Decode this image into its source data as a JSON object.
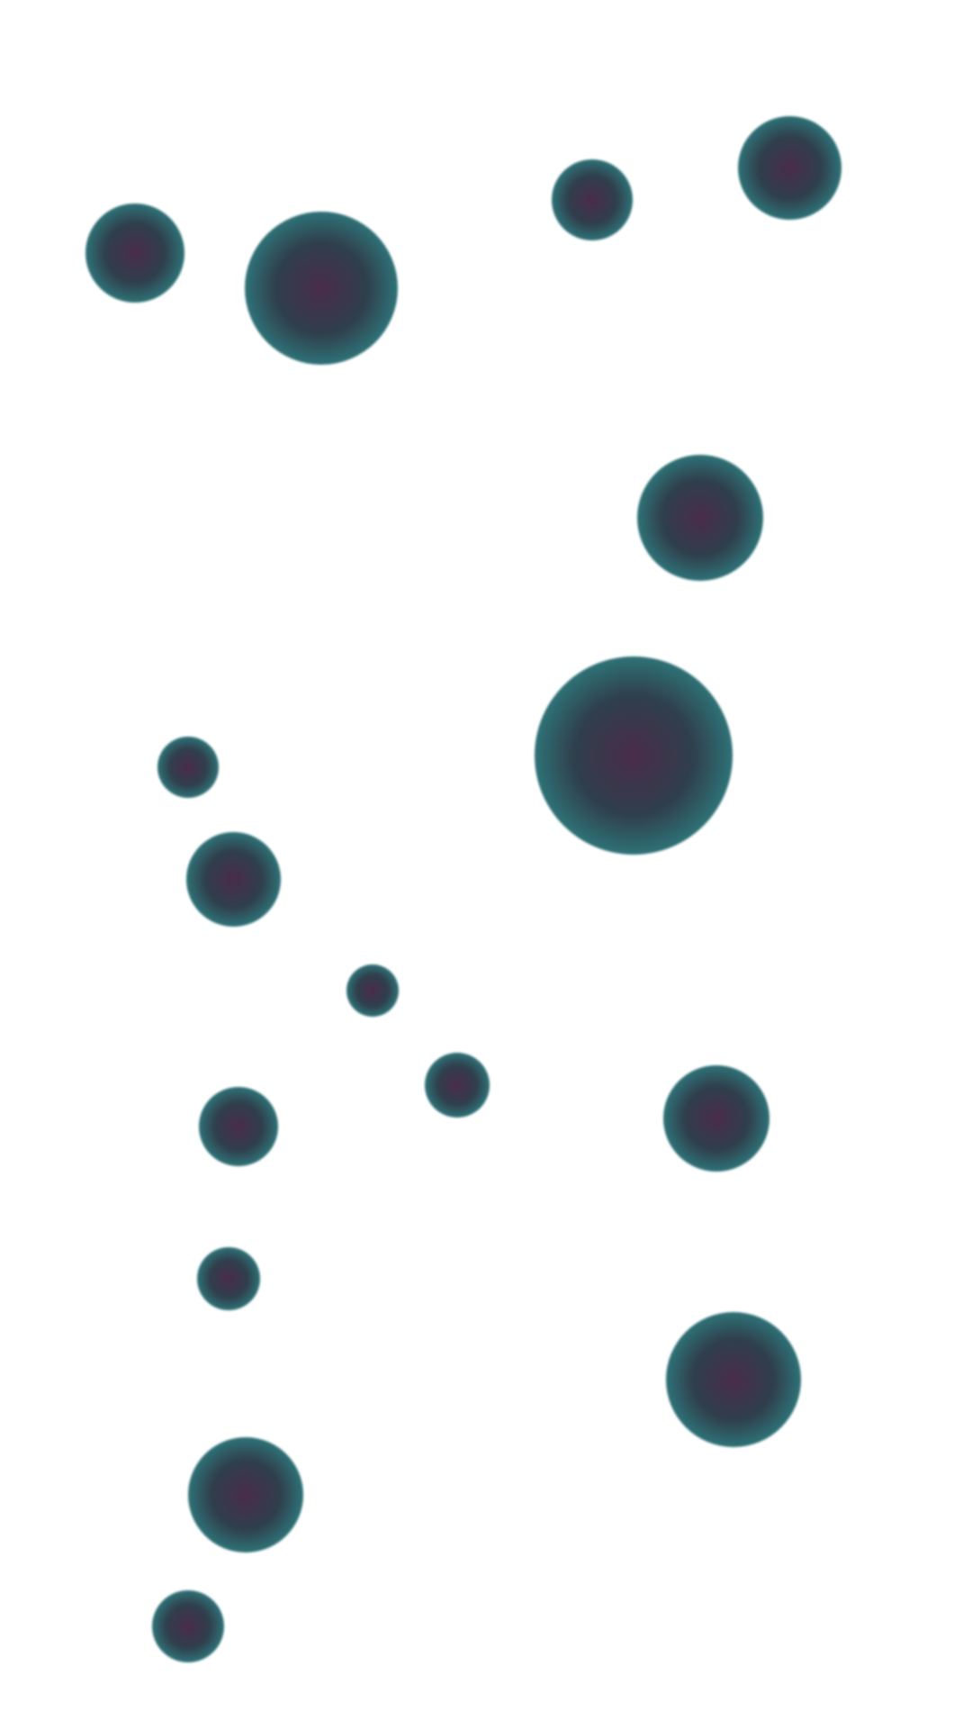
{
  "palette": {
    "background": "#ffffff",
    "core": "#4a2c4a",
    "mid": "#2f3f4c",
    "rim": "#2e7f82"
  },
  "orbs": [
    {
      "name": "orb-1"
    },
    {
      "name": "orb-2"
    },
    {
      "name": "orb-3"
    },
    {
      "name": "orb-4"
    },
    {
      "name": "orb-5"
    },
    {
      "name": "orb-6"
    },
    {
      "name": "orb-7"
    },
    {
      "name": "orb-8"
    },
    {
      "name": "orb-9"
    },
    {
      "name": "orb-10"
    },
    {
      "name": "orb-11"
    },
    {
      "name": "orb-12"
    },
    {
      "name": "orb-13"
    },
    {
      "name": "orb-14"
    },
    {
      "name": "orb-15"
    },
    {
      "name": "orb-16"
    }
  ]
}
